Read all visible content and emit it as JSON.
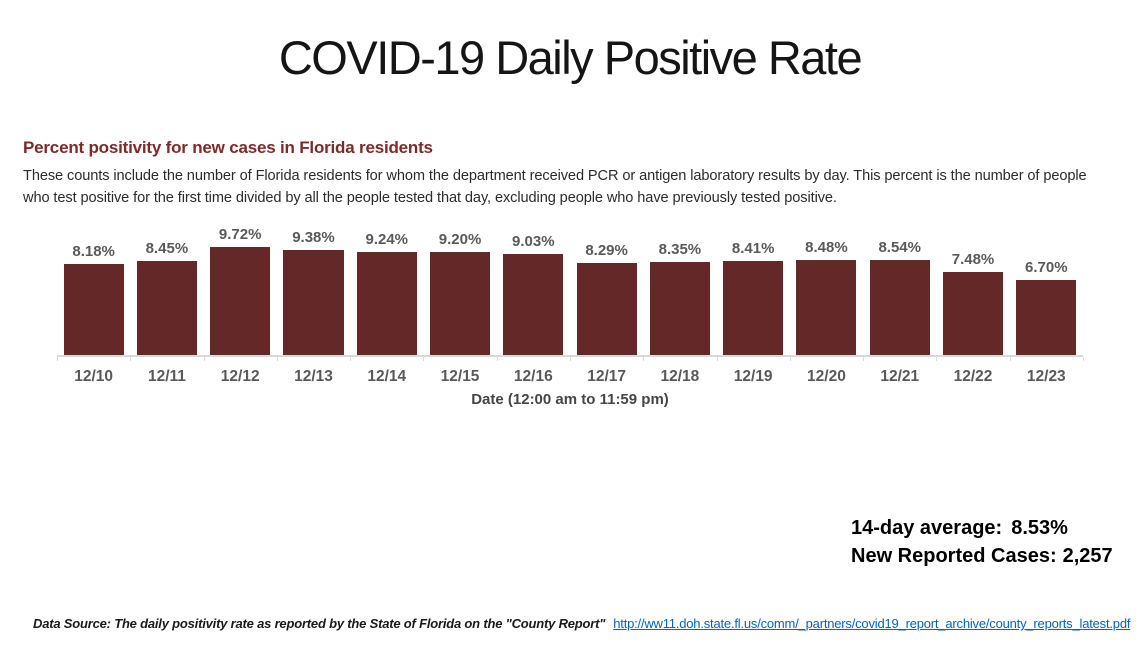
{
  "page": {
    "title": "COVID-19 Daily Positive Rate"
  },
  "intro": {
    "heading": "Percent positivity for new cases in Florida residents",
    "description": "These counts include the number of Florida residents for whom the department received PCR or antigen laboratory results by day. This percent is the number of people who test positive for the first time divided by all the people tested that day, excluding people who have previously tested positive."
  },
  "chart_data": {
    "type": "bar",
    "title": "Percent positivity for new cases in Florida residents",
    "categories": [
      "12/10",
      "12/11",
      "12/12",
      "12/13",
      "12/14",
      "12/15",
      "12/16",
      "12/17",
      "12/18",
      "12/19",
      "12/20",
      "12/21",
      "12/22",
      "12/23"
    ],
    "values": [
      8.18,
      8.45,
      9.72,
      9.38,
      9.24,
      9.2,
      9.03,
      8.29,
      8.35,
      8.41,
      8.48,
      8.54,
      7.48,
      6.7
    ],
    "value_labels": [
      "8.18%",
      "8.45%",
      "9.72%",
      "9.38%",
      "9.24%",
      "9.20%",
      "9.03%",
      "8.29%",
      "8.35%",
      "8.41%",
      "8.48%",
      "8.54%",
      "7.48%",
      "6.70%"
    ],
    "xlabel": "Date (12:00 am to 11:59 pm)",
    "ylabel": "",
    "ylim": [
      0,
      10
    ],
    "grid": false,
    "legend": false,
    "bar_color": "#642828",
    "label_color": "#595959",
    "axis_line_color": "#d9d9d9"
  },
  "stats": {
    "average_label": "14-day average:",
    "average_value": "8.53%",
    "cases_label": "New Reported Cases:",
    "cases_value": "2,257"
  },
  "footer": {
    "source_text": "Data Source: The daily positivity rate as reported by the State of Florida on the \"County Report\"",
    "link_text": "http://ww11.doh.state.fl.us/comm/_partners/covid19_report_archive/county_reports_latest.pdf"
  }
}
